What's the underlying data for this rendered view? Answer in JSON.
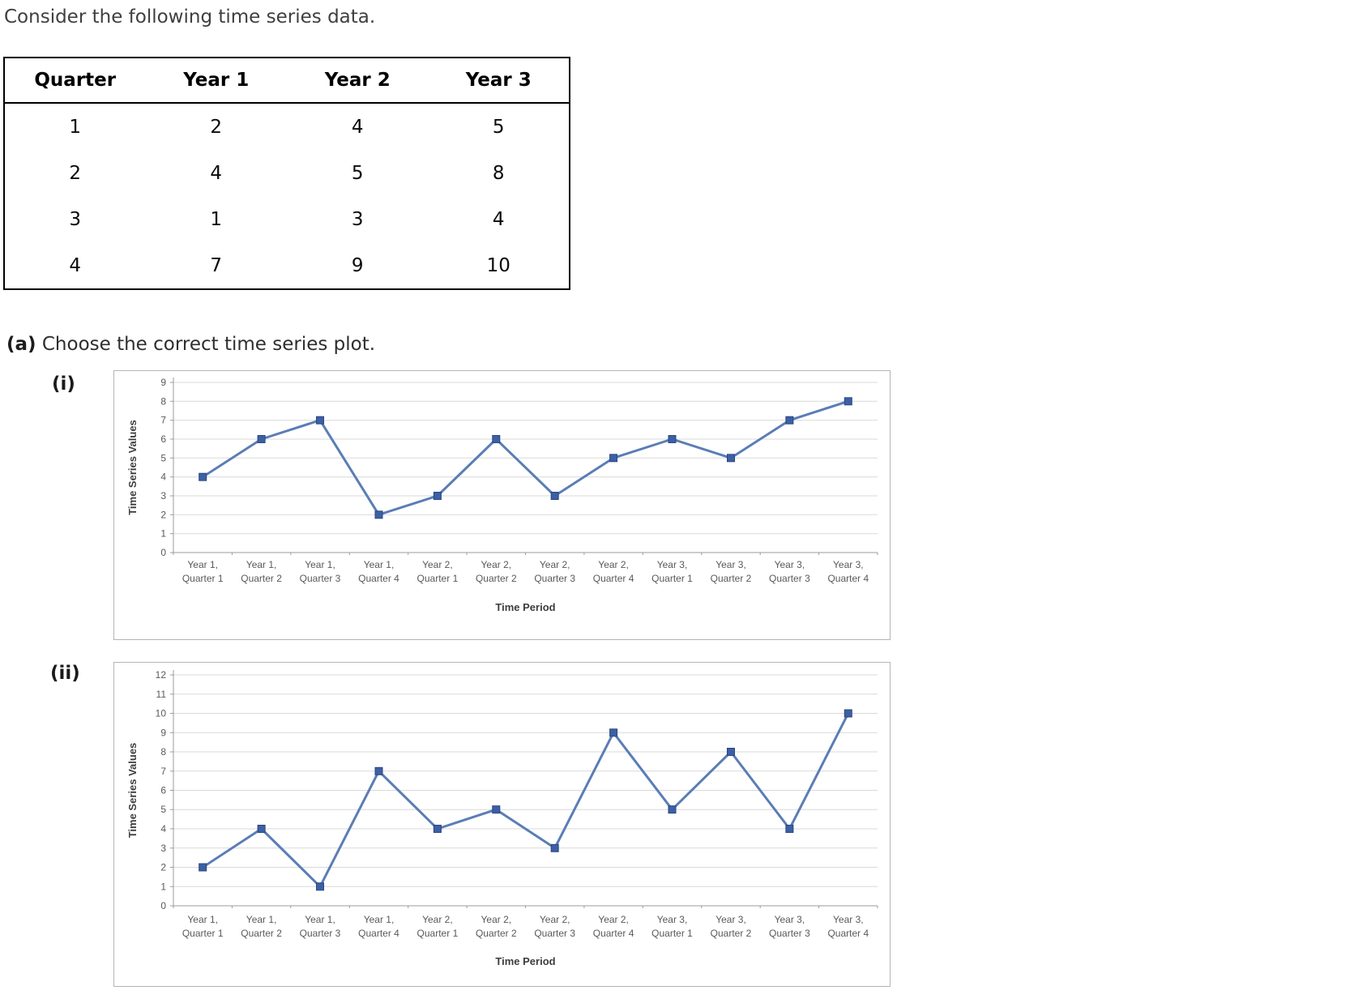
{
  "intro": "Consider the following time series data.",
  "table": {
    "headers": [
      "Quarter",
      "Year 1",
      "Year 2",
      "Year 3"
    ],
    "rows": [
      [
        "1",
        "2",
        "4",
        "5"
      ],
      [
        "2",
        "4",
        "5",
        "8"
      ],
      [
        "3",
        "1",
        "3",
        "4"
      ],
      [
        "4",
        "7",
        "9",
        "10"
      ]
    ]
  },
  "question": {
    "part_label": "(a)",
    "text": "Choose the correct time series plot."
  },
  "options": [
    {
      "label": "(i)"
    },
    {
      "label": "(ii)"
    }
  ],
  "colors": {
    "line": "#5a7db6",
    "marker_fill": "#3c5fa6",
    "marker_border": "#2c477e",
    "gridline": "#d9d9d9",
    "axis": "#9b9b9b"
  },
  "chart_data": [
    {
      "type": "line",
      "option_label": "(i)",
      "title": "",
      "xlabel": "Time Period",
      "ylabel": "Time Series Values",
      "ylim": [
        0,
        9
      ],
      "ytick_step": 1,
      "grid": true,
      "legend": "none",
      "marker": "square",
      "categories": [
        "Year 1, Quarter 1",
        "Year 1, Quarter 2",
        "Year 1, Quarter 3",
        "Year 1, Quarter 4",
        "Year 2, Quarter 1",
        "Year 2, Quarter 2",
        "Year 2, Quarter 3",
        "Year 2, Quarter 4",
        "Year 3, Quarter 1",
        "Year 3, Quarter 2",
        "Year 3, Quarter 3",
        "Year 3, Quarter 4"
      ],
      "values": [
        4,
        6,
        7,
        2,
        3,
        6,
        3,
        5,
        6,
        5,
        7,
        8
      ]
    },
    {
      "type": "line",
      "option_label": "(ii)",
      "title": "",
      "xlabel": "Time Period",
      "ylabel": "Time Series Values",
      "ylim": [
        0,
        12
      ],
      "ytick_step": 1,
      "grid": true,
      "legend": "none",
      "marker": "square",
      "categories": [
        "Year 1, Quarter 1",
        "Year 1, Quarter 2",
        "Year 1, Quarter 3",
        "Year 1, Quarter 4",
        "Year 2, Quarter 1",
        "Year 2, Quarter 2",
        "Year 2, Quarter 3",
        "Year 2, Quarter 4",
        "Year 3, Quarter 1",
        "Year 3, Quarter 2",
        "Year 3, Quarter 3",
        "Year 3, Quarter 4"
      ],
      "values": [
        2,
        4,
        1,
        7,
        4,
        5,
        3,
        9,
        5,
        8,
        4,
        10
      ]
    }
  ]
}
